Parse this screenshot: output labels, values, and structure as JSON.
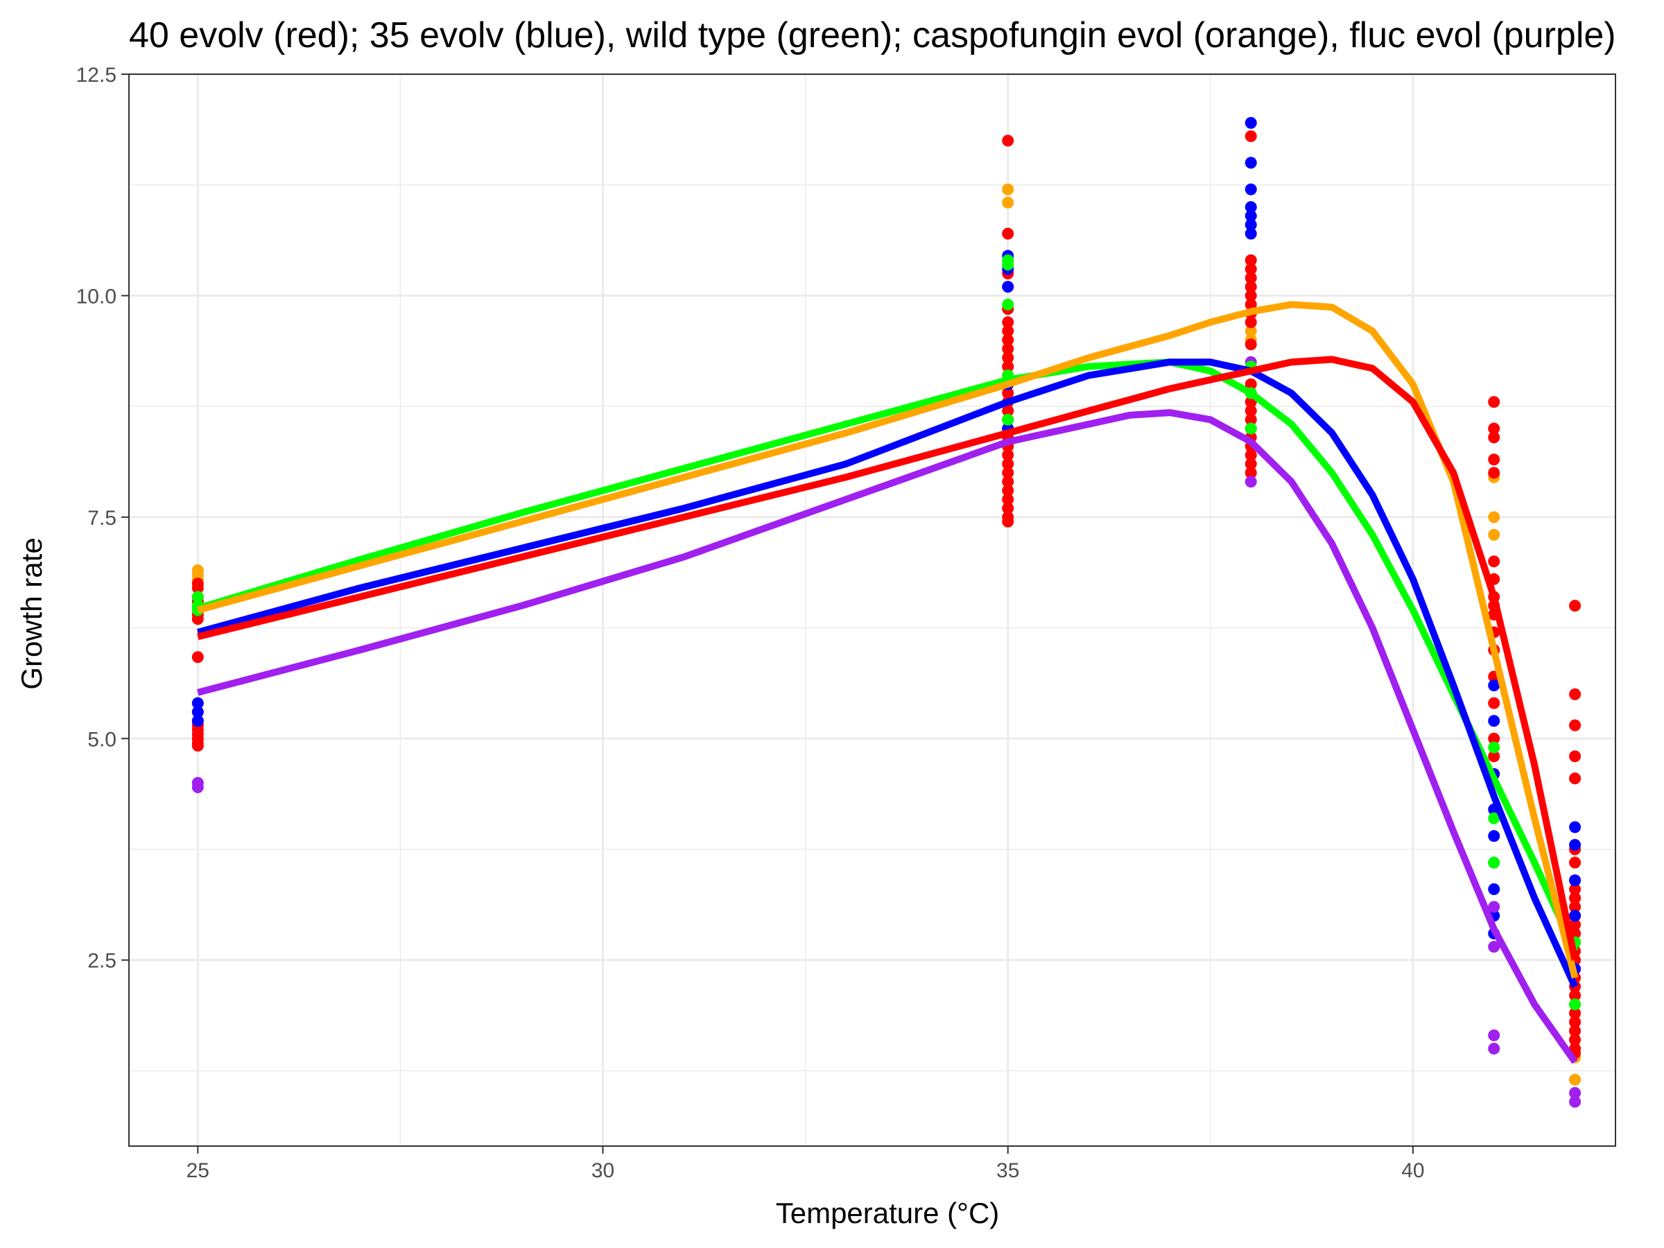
{
  "chart_data": {
    "type": "scatter",
    "title": "40 evolv (red); 35 evolv (blue), wild type (green); caspofungin evol (orange), fluc evol (purple)",
    "xlabel": "Temperature (°C)",
    "ylabel": "Growth rate",
    "xlim": [
      24.15,
      42.5
    ],
    "ylim": [
      0.4,
      12.5
    ],
    "x_ticks": [
      25,
      30,
      35,
      40
    ],
    "x_tick_labels": [
      "25",
      "30",
      "35",
      "40"
    ],
    "y_ticks": [
      2.5,
      5.0,
      7.5,
      10.0,
      12.5
    ],
    "y_tick_labels": [
      "2.5",
      "5.0",
      "7.5",
      "10.0",
      "12.5"
    ],
    "x_minor_ticks": [
      27.5,
      32.5,
      37.5,
      42.5
    ],
    "y_minor_ticks": [
      1.25,
      3.75,
      6.25,
      8.75,
      11.25
    ],
    "grid": true,
    "legend": "none",
    "series": [
      {
        "color": "#00ff00",
        "points": [
          {
            "x": 25,
            "y": [
              6.6,
              6.5,
              6.45
            ]
          },
          {
            "x": 35,
            "y": [
              10.4,
              10.35,
              9.9,
              9.1,
              8.6
            ]
          },
          {
            "x": 38,
            "y": [
              9.2,
              8.9,
              8.5
            ]
          },
          {
            "x": 41,
            "y": [
              4.9,
              4.1,
              3.6
            ]
          },
          {
            "x": 42,
            "y": [
              2.7,
              2.0
            ]
          }
        ],
        "curve": [
          {
            "x": 25,
            "y": 6.47
          },
          {
            "x": 27,
            "y": 7.02
          },
          {
            "x": 29,
            "y": 7.55
          },
          {
            "x": 31,
            "y": 8.05
          },
          {
            "x": 33,
            "y": 8.55
          },
          {
            "x": 35,
            "y": 9.05
          },
          {
            "x": 36,
            "y": 9.2
          },
          {
            "x": 37,
            "y": 9.25
          },
          {
            "x": 37.5,
            "y": 9.15
          },
          {
            "x": 38,
            "y": 8.9
          },
          {
            "x": 38.5,
            "y": 8.55
          },
          {
            "x": 39,
            "y": 8.0
          },
          {
            "x": 39.5,
            "y": 7.3
          },
          {
            "x": 40,
            "y": 6.45
          },
          {
            "x": 40.5,
            "y": 5.5
          },
          {
            "x": 41,
            "y": 4.55
          },
          {
            "x": 41.5,
            "y": 3.6
          },
          {
            "x": 42,
            "y": 2.6
          }
        ]
      },
      {
        "color": "#0000ff",
        "points": [
          {
            "x": 25,
            "y": [
              5.4,
              5.3,
              5.2
            ]
          },
          {
            "x": 35,
            "y": [
              10.45,
              10.3,
              10.1,
              9.0,
              8.5
            ]
          },
          {
            "x": 38,
            "y": [
              11.95,
              11.5,
              11.2,
              11.0,
              10.9,
              10.8,
              10.7
            ]
          },
          {
            "x": 41,
            "y": [
              5.6,
              5.2,
              4.6,
              4.2,
              3.9,
              3.6,
              3.3,
              3.0,
              2.8
            ]
          },
          {
            "x": 42,
            "y": [
              4.0,
              3.8,
              3.4,
              3.0,
              2.4
            ]
          }
        ],
        "curve": [
          {
            "x": 25,
            "y": 6.2
          },
          {
            "x": 27,
            "y": 6.7
          },
          {
            "x": 29,
            "y": 7.15
          },
          {
            "x": 31,
            "y": 7.6
          },
          {
            "x": 33,
            "y": 8.1
          },
          {
            "x": 35,
            "y": 8.8
          },
          {
            "x": 36,
            "y": 9.1
          },
          {
            "x": 37,
            "y": 9.25
          },
          {
            "x": 37.5,
            "y": 9.25
          },
          {
            "x": 38,
            "y": 9.15
          },
          {
            "x": 38.5,
            "y": 8.9
          },
          {
            "x": 39,
            "y": 8.45
          },
          {
            "x": 39.5,
            "y": 7.75
          },
          {
            "x": 40,
            "y": 6.8
          },
          {
            "x": 40.5,
            "y": 5.6
          },
          {
            "x": 41,
            "y": 4.35
          },
          {
            "x": 41.5,
            "y": 3.2
          },
          {
            "x": 42,
            "y": 2.2
          }
        ]
      },
      {
        "color": "#ffa500",
        "points": [
          {
            "x": 25,
            "y": [
              6.9,
              6.85,
              6.8
            ]
          },
          {
            "x": 35,
            "y": [
              11.2,
              11.05
            ]
          },
          {
            "x": 38,
            "y": [
              9.6,
              9.5
            ]
          },
          {
            "x": 41,
            "y": [
              7.95,
              7.5,
              7.3,
              6.4
            ]
          },
          {
            "x": 42,
            "y": [
              1.4,
              1.15,
              1.0
            ]
          }
        ],
        "curve": [
          {
            "x": 25,
            "y": 6.45
          },
          {
            "x": 27,
            "y": 6.95
          },
          {
            "x": 29,
            "y": 7.45
          },
          {
            "x": 31,
            "y": 7.95
          },
          {
            "x": 33,
            "y": 8.45
          },
          {
            "x": 35,
            "y": 9.0
          },
          {
            "x": 36,
            "y": 9.3
          },
          {
            "x": 37,
            "y": 9.55
          },
          {
            "x": 37.5,
            "y": 9.7
          },
          {
            "x": 38,
            "y": 9.82
          },
          {
            "x": 38.5,
            "y": 9.9
          },
          {
            "x": 39,
            "y": 9.87
          },
          {
            "x": 39.5,
            "y": 9.6
          },
          {
            "x": 40,
            "y": 9.0
          },
          {
            "x": 40.5,
            "y": 7.9
          },
          {
            "x": 41,
            "y": 6.0
          },
          {
            "x": 41.5,
            "y": 4.1
          },
          {
            "x": 42,
            "y": 2.3
          }
        ]
      },
      {
        "color": "#a020f0",
        "points": [
          {
            "x": 25,
            "y": [
              4.5,
              4.45
            ]
          },
          {
            "x": 38,
            "y": [
              9.25,
              7.9
            ]
          },
          {
            "x": 41,
            "y": [
              3.1,
              2.65,
              1.65,
              1.5
            ]
          },
          {
            "x": 42,
            "y": [
              1.0,
              0.9
            ]
          }
        ],
        "curve": [
          {
            "x": 25,
            "y": 5.52
          },
          {
            "x": 27,
            "y": 6.0
          },
          {
            "x": 29,
            "y": 6.5
          },
          {
            "x": 31,
            "y": 7.05
          },
          {
            "x": 33,
            "y": 7.7
          },
          {
            "x": 35,
            "y": 8.35
          },
          {
            "x": 36,
            "y": 8.55
          },
          {
            "x": 36.5,
            "y": 8.65
          },
          {
            "x": 37,
            "y": 8.68
          },
          {
            "x": 37.5,
            "y": 8.6
          },
          {
            "x": 38,
            "y": 8.35
          },
          {
            "x": 38.5,
            "y": 7.9
          },
          {
            "x": 39,
            "y": 7.2
          },
          {
            "x": 39.5,
            "y": 6.25
          },
          {
            "x": 40,
            "y": 5.1
          },
          {
            "x": 40.5,
            "y": 3.95
          },
          {
            "x": 41,
            "y": 2.85
          },
          {
            "x": 41.5,
            "y": 2.0
          },
          {
            "x": 42,
            "y": 1.35
          }
        ]
      },
      {
        "color": "#ff0000",
        "points": [
          {
            "x": 25,
            "y": [
              6.75,
              6.7,
              6.6,
              6.55,
              6.5,
              6.45,
              6.4,
              6.35,
              5.92,
              5.3,
              5.2,
              5.15,
              5.1,
              5.05,
              5.0,
              4.95,
              4.92
            ]
          },
          {
            "x": 35,
            "y": [
              11.75,
              10.7,
              10.25,
              9.85,
              9.7,
              9.6,
              9.5,
              9.4,
              9.3,
              9.2,
              9.1,
              9.0,
              8.9,
              8.8,
              8.7,
              8.6,
              8.5,
              8.4,
              8.3,
              8.2,
              8.1,
              8.0,
              7.9,
              7.8,
              7.7,
              7.6,
              7.5,
              7.45
            ]
          },
          {
            "x": 38,
            "y": [
              11.8,
              10.4,
              10.3,
              10.2,
              10.1,
              10.0,
              9.9,
              9.8,
              9.7,
              9.45,
              9.0,
              8.9,
              8.8,
              8.7,
              8.6,
              8.5,
              8.4,
              8.3,
              8.2,
              8.1,
              8.0
            ]
          },
          {
            "x": 41,
            "y": [
              8.8,
              8.5,
              8.4,
              8.15,
              8.0,
              7.0,
              6.8,
              6.6,
              6.5,
              6.4,
              6.2,
              6.0,
              5.7,
              5.4,
              5.0,
              4.8
            ]
          },
          {
            "x": 42,
            "y": [
              6.5,
              5.5,
              5.15,
              4.8,
              4.55,
              3.75,
              3.6,
              3.4,
              3.3,
              3.2,
              3.1,
              3.0,
              2.9,
              2.8,
              2.7,
              2.6,
              2.5,
              2.4,
              2.3,
              2.2,
              2.1,
              2.0,
              1.9,
              1.8,
              1.7,
              1.6,
              1.5,
              1.45
            ]
          }
        ],
        "curve": [
          {
            "x": 25,
            "y": 6.15
          },
          {
            "x": 27,
            "y": 6.6
          },
          {
            "x": 29,
            "y": 7.05
          },
          {
            "x": 31,
            "y": 7.5
          },
          {
            "x": 33,
            "y": 7.95
          },
          {
            "x": 35,
            "y": 8.45
          },
          {
            "x": 36,
            "y": 8.7
          },
          {
            "x": 37,
            "y": 8.95
          },
          {
            "x": 38,
            "y": 9.15
          },
          {
            "x": 38.5,
            "y": 9.25
          },
          {
            "x": 39,
            "y": 9.28
          },
          {
            "x": 39.5,
            "y": 9.18
          },
          {
            "x": 40,
            "y": 8.8
          },
          {
            "x": 40.5,
            "y": 8.0
          },
          {
            "x": 41,
            "y": 6.6
          },
          {
            "x": 41.5,
            "y": 4.7
          },
          {
            "x": 42,
            "y": 2.5
          }
        ]
      }
    ]
  }
}
